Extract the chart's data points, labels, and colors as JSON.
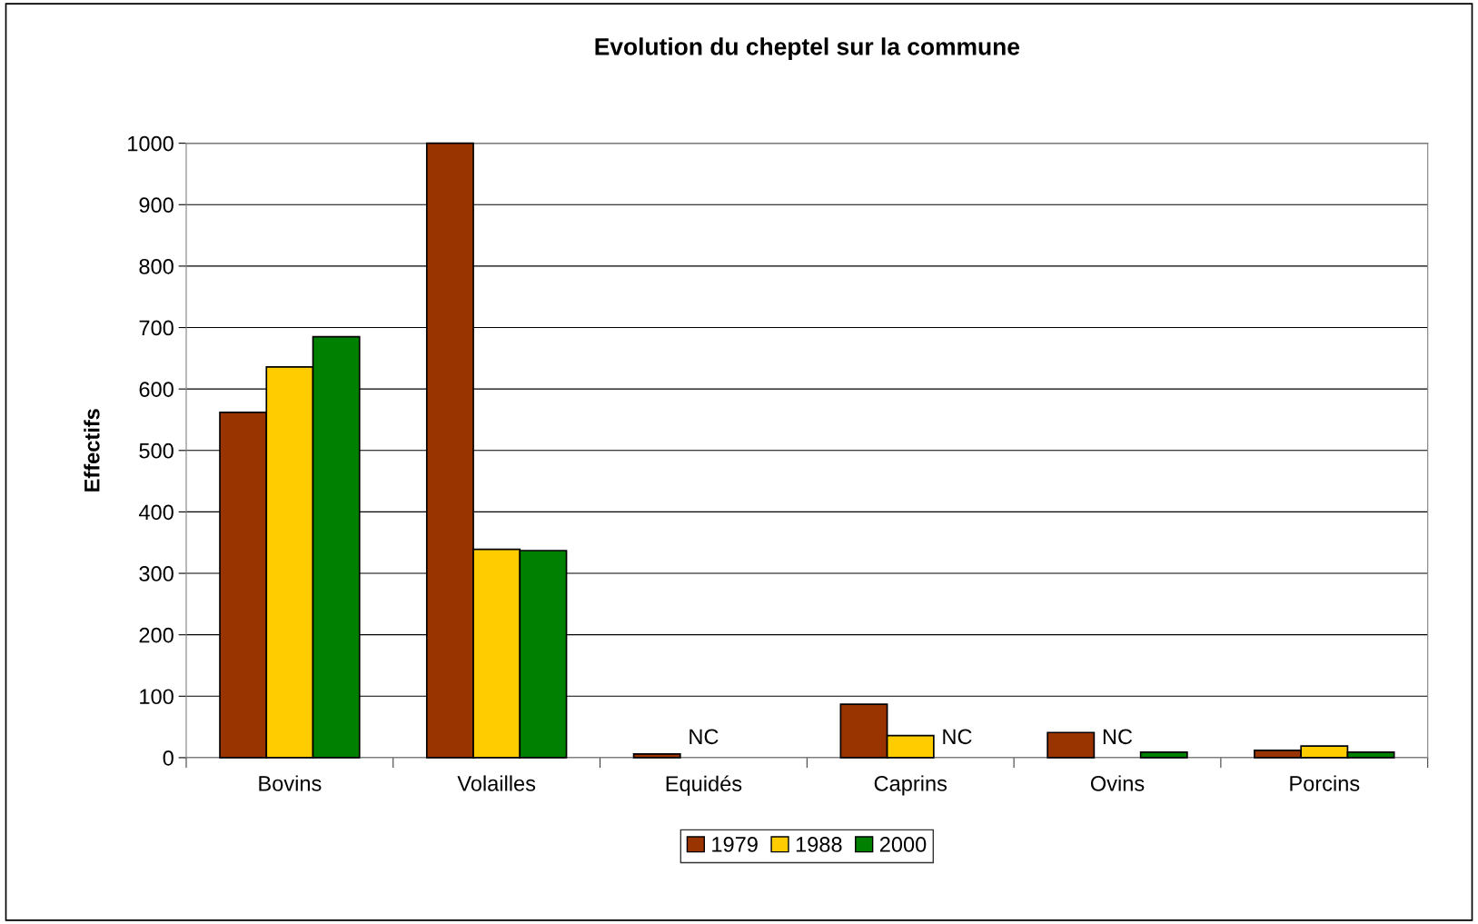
{
  "chart_data": {
    "type": "bar",
    "title": "Evolution du cheptel sur la commune",
    "ylabel": "Effectifs",
    "categories": [
      "Bovins",
      "Volailles",
      "Equidés",
      "Caprins",
      "Ovins",
      "Porcins"
    ],
    "series": [
      {
        "name": "1979",
        "color": "#993300",
        "values": [
          562,
          1000,
          6,
          87,
          41,
          12
        ],
        "value_labels": [
          null,
          null,
          null,
          null,
          null,
          null
        ]
      },
      {
        "name": "1988",
        "color": "#ffcc00",
        "values": [
          636,
          339,
          null,
          36,
          null,
          19
        ],
        "value_labels": [
          null,
          null,
          "NC",
          null,
          "NC",
          null
        ]
      },
      {
        "name": "2000",
        "color": "#008000",
        "values": [
          685,
          337,
          null,
          null,
          9,
          9
        ],
        "value_labels": [
          null,
          null,
          null,
          "NC",
          null,
          null
        ]
      }
    ],
    "ylim": [
      0,
      1000
    ],
    "yticks": [
      0,
      100,
      200,
      300,
      400,
      500,
      600,
      700,
      800,
      900,
      1000
    ],
    "grid": "y",
    "legend": "bottom"
  }
}
